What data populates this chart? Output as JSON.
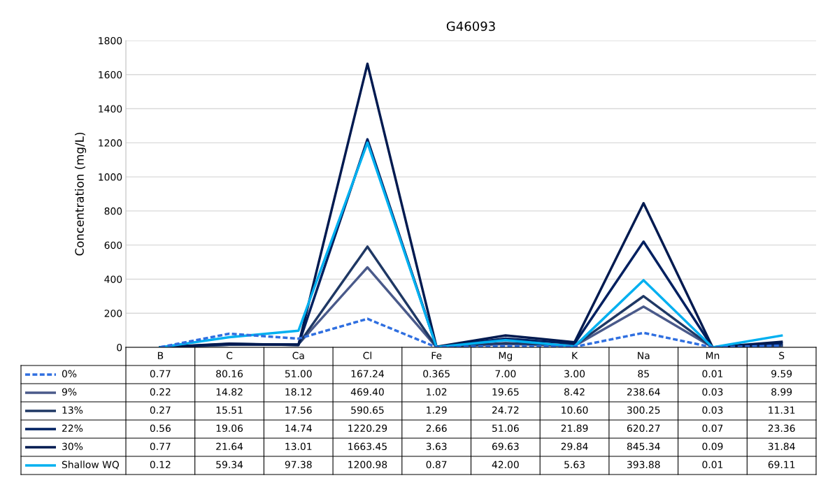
{
  "chart_data": {
    "type": "line",
    "title": "G46093",
    "ylabel": "Concentration (mg/L)",
    "categories": [
      "B",
      "C",
      "Ca",
      "Cl",
      "Fe",
      "Mg",
      "K",
      "Na",
      "Mn",
      "S"
    ],
    "ylim": [
      0,
      1800
    ],
    "yticks": [
      0,
      200,
      400,
      600,
      800,
      1000,
      1200,
      1400,
      1600,
      1800
    ],
    "grid": "y",
    "legend": "bottom",
    "marker": "none",
    "series": [
      {
        "name": "0%",
        "color": "#2f6fe0",
        "line_style": "dashed",
        "values": [
          0.77,
          80.16,
          51.0,
          167.24,
          0.365,
          7.0,
          3.0,
          85,
          0.01,
          9.59
        ],
        "value_labels": [
          "0.77",
          "80.16",
          "51.00",
          "167.24",
          "0.365",
          "7.00",
          "3.00",
          "85",
          "0.01",
          "9.59"
        ]
      },
      {
        "name": "9%",
        "color": "#4a5a8a",
        "line_style": "solid",
        "values": [
          0.22,
          14.82,
          18.12,
          469.4,
          1.02,
          19.65,
          8.42,
          238.64,
          0.03,
          8.99
        ],
        "value_labels": [
          "0.22",
          "14.82",
          "18.12",
          "469.40",
          "1.02",
          "19.65",
          "8.42",
          "238.64",
          "0.03",
          "8.99"
        ]
      },
      {
        "name": "13%",
        "color": "#1f3864",
        "line_style": "solid",
        "values": [
          0.27,
          15.51,
          17.56,
          590.65,
          1.29,
          24.72,
          10.6,
          300.25,
          0.03,
          11.31
        ],
        "value_labels": [
          "0.27",
          "15.51",
          "17.56",
          "590.65",
          "1.29",
          "24.72",
          "10.60",
          "300.25",
          "0.03",
          "11.31"
        ]
      },
      {
        "name": "22%",
        "color": "#002060",
        "line_style": "solid",
        "values": [
          0.56,
          19.06,
          14.74,
          1220.29,
          2.66,
          51.06,
          21.89,
          620.27,
          0.07,
          23.36
        ],
        "value_labels": [
          "0.56",
          "19.06",
          "14.74",
          "1220.29",
          "2.66",
          "51.06",
          "21.89",
          "620.27",
          "0.07",
          "23.36"
        ]
      },
      {
        "name": "30%",
        "color": "#001a50",
        "line_style": "solid",
        "values": [
          0.77,
          21.64,
          13.01,
          1663.45,
          3.63,
          69.63,
          29.84,
          845.34,
          0.09,
          31.84
        ],
        "value_labels": [
          "0.77",
          "21.64",
          "13.01",
          "1663.45",
          "3.63",
          "69.63",
          "29.84",
          "845.34",
          "0.09",
          "31.84"
        ]
      },
      {
        "name": "Shallow WQ",
        "color": "#00b0f0",
        "line_style": "solid",
        "values": [
          0.12,
          59.34,
          97.38,
          1200.98,
          0.87,
          42.0,
          5.63,
          393.88,
          0.01,
          69.11
        ],
        "value_labels": [
          "0.12",
          "59.34",
          "97.38",
          "1200.98",
          "0.87",
          "42.00",
          "5.63",
          "393.88",
          "0.01",
          "69.11"
        ]
      }
    ]
  }
}
